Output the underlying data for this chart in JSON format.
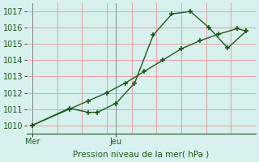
{
  "line1_x": [
    0,
    2,
    3,
    3.5,
    4.5,
    5.5,
    6.5,
    7.5,
    8.5,
    9.5,
    10.5,
    11.5
  ],
  "line1_y": [
    1010.0,
    1011.05,
    1010.8,
    1010.8,
    1011.35,
    1012.6,
    1015.55,
    1016.85,
    1017.0,
    1016.0,
    1014.75,
    1015.8
  ],
  "line2_x": [
    0,
    2,
    3,
    4,
    5,
    6,
    7,
    8,
    9,
    10,
    11,
    11.5
  ],
  "line2_y": [
    1010.0,
    1011.0,
    1011.5,
    1012.0,
    1012.6,
    1013.3,
    1014.0,
    1014.7,
    1015.2,
    1015.6,
    1015.95,
    1015.8
  ],
  "line_color": "#1a5c1a",
  "background_color": "#d8f0ee",
  "grid_color": "#e8a0a0",
  "ylabel_text": "Pression niveau de la mer( hPa )",
  "ylim": [
    1009.5,
    1017.5
  ],
  "xlim": [
    -0.3,
    12
  ],
  "yticks": [
    1010,
    1011,
    1012,
    1013,
    1014,
    1015,
    1016,
    1017
  ],
  "mer_x": 0,
  "jeu_x": 4.5,
  "mer_label": "Mer",
  "jeu_label": "Jeu",
  "marker": "+",
  "markersize": 5,
  "markeredgewidth": 1.2,
  "linewidth": 1.0,
  "axis_fontsize": 7,
  "xlabel_fontsize": 7.5,
  "n_vgrid": 10
}
